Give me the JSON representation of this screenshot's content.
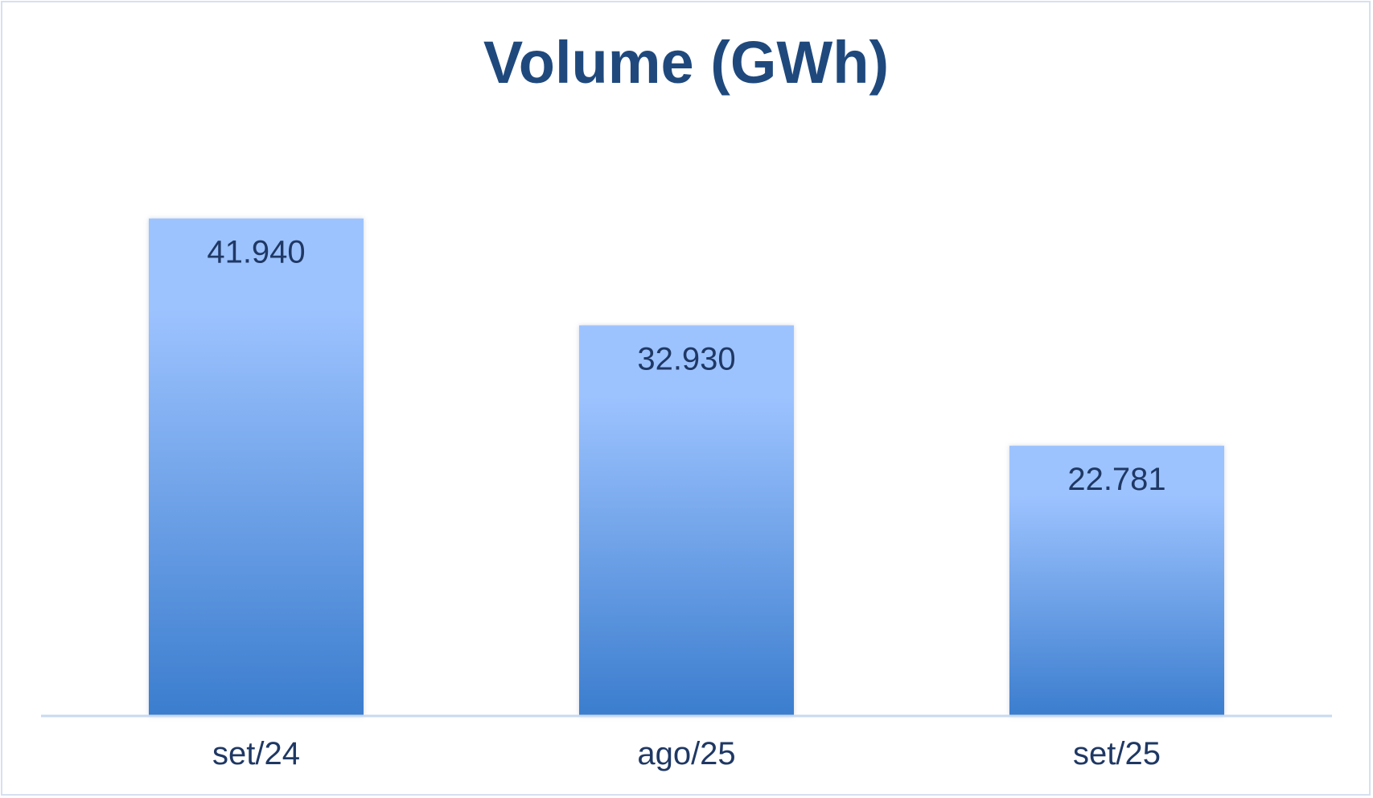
{
  "chart_data": {
    "type": "bar",
    "title": "Volume (GWh)",
    "categories": [
      "set/24",
      "ago/25",
      "set/25"
    ],
    "values": [
      41940,
      32930,
      22781
    ],
    "value_labels": [
      "41.940",
      "32.930",
      "22.781"
    ],
    "xlabel": "",
    "ylabel": "",
    "ylim": [
      0,
      50000
    ],
    "grid": false,
    "legend": "none",
    "colors": {
      "bar_top": "#9dc3ff",
      "bar_bottom": "#3b7dce",
      "axis": "#c9d9ef",
      "text": "#1f3864",
      "title": "#1f497d"
    }
  }
}
